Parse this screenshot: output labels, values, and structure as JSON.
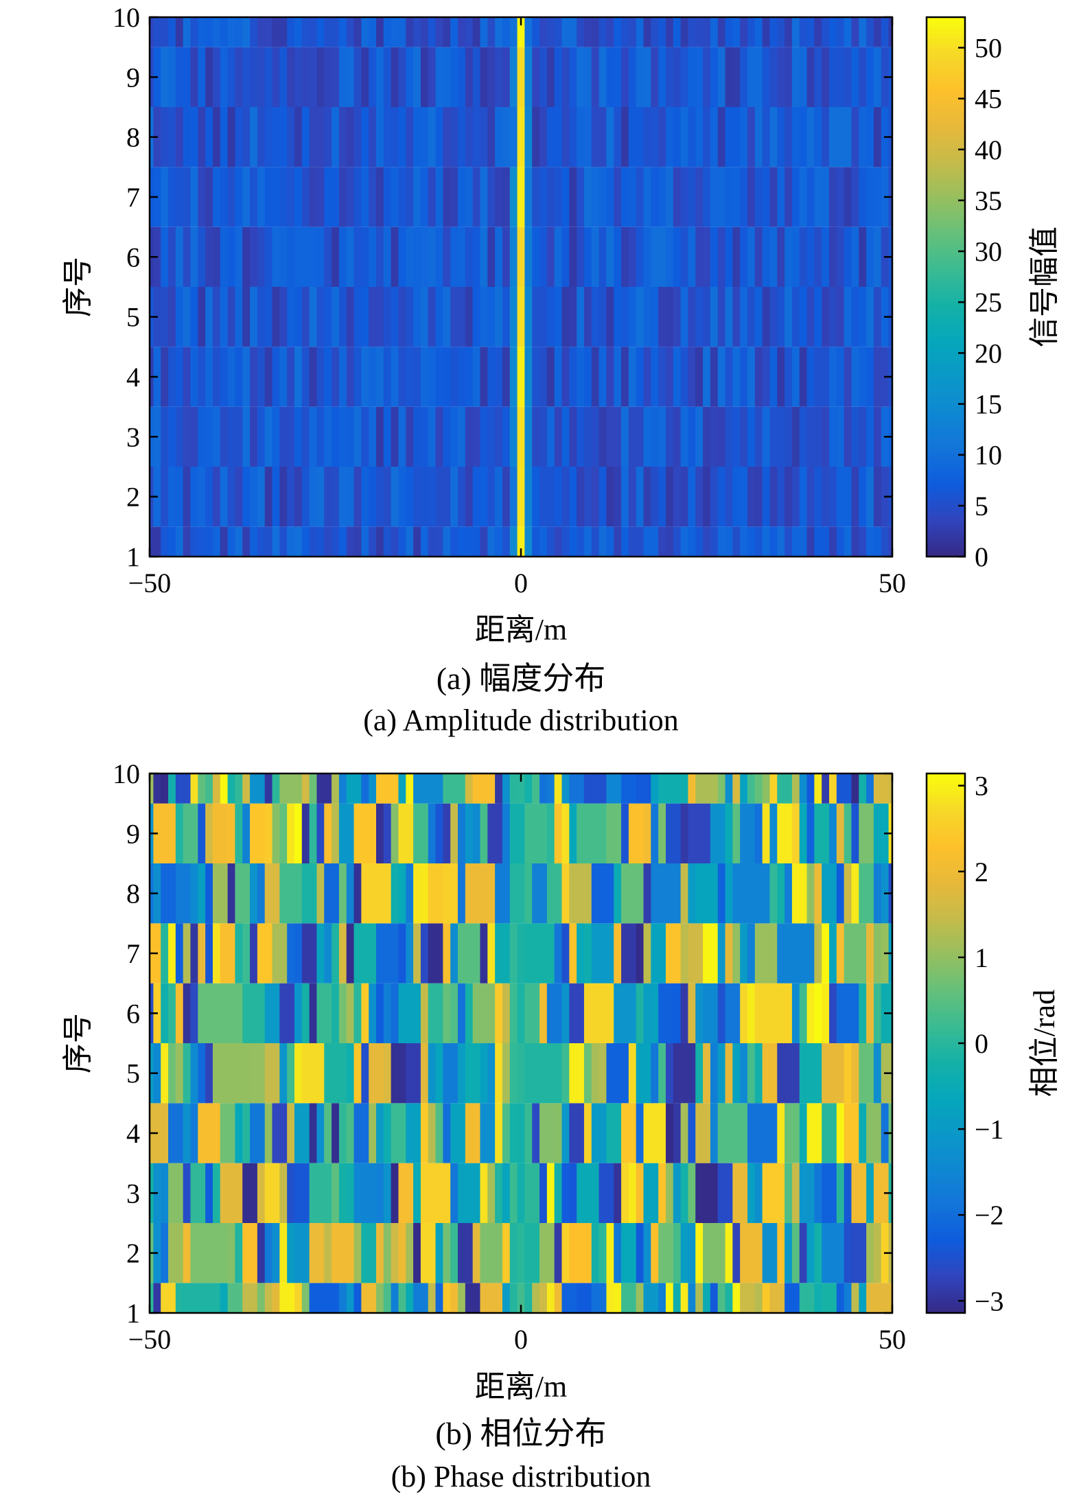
{
  "chart_data": [
    {
      "id": "amplitude",
      "type": "heatmap",
      "title": "",
      "caption_cn": "(a) 幅度分布",
      "caption_en": "(a) Amplitude distribution",
      "xlabel": "距离/m",
      "ylabel": "序号",
      "colorbar_label": "信号幅值",
      "xlim": [
        -50,
        50
      ],
      "ylim": [
        1,
        10
      ],
      "clim": [
        0,
        53
      ],
      "x_ticks": [
        -50,
        0,
        50
      ],
      "x_tick_labels": [
        "−50",
        "0",
        "50"
      ],
      "y_ticks": [
        1,
        2,
        3,
        4,
        5,
        6,
        7,
        8,
        9,
        10
      ],
      "y_tick_labels": [
        "1",
        "2",
        "3",
        "4",
        "5",
        "6",
        "7",
        "8",
        "9",
        "10"
      ],
      "colorbar_ticks": [
        0,
        5,
        10,
        15,
        20,
        25,
        30,
        35,
        40,
        45,
        50
      ],
      "colorbar_tick_labels": [
        "0",
        "5",
        "10",
        "15",
        "20",
        "25",
        "30",
        "35",
        "40",
        "45",
        "50"
      ],
      "rows": 10,
      "x_range_bins": 101,
      "description_of_values": {
        "peak_at_x": 0,
        "peak_value": 53,
        "background_level": [
          2,
          10
        ]
      },
      "colormap": "parula",
      "grid": false
    },
    {
      "id": "phase",
      "type": "heatmap",
      "title": "",
      "caption_cn": "(b) 相位分布",
      "caption_en": "(b) Phase distribution",
      "xlabel": "距离/m",
      "ylabel": "序号",
      "colorbar_label": "相位/rad",
      "xlim": [
        -50,
        50
      ],
      "ylim": [
        1,
        10
      ],
      "clim": [
        -3.1416,
        3.1416
      ],
      "x_ticks": [
        -50,
        0,
        50
      ],
      "x_tick_labels": [
        "−50",
        "0",
        "50"
      ],
      "y_ticks": [
        1,
        2,
        3,
        4,
        5,
        6,
        7,
        8,
        9,
        10
      ],
      "y_tick_labels": [
        "1",
        "2",
        "3",
        "4",
        "5",
        "6",
        "7",
        "8",
        "9",
        "10"
      ],
      "colorbar_ticks": [
        -3,
        -2,
        -1,
        0,
        1,
        2,
        3
      ],
      "colorbar_tick_labels": [
        "−3",
        "−2",
        "−1",
        "0",
        "1",
        "2",
        "3"
      ],
      "rows": 10,
      "x_range_bins": 101,
      "description_of_values": {
        "center_phase_at_x0": 0,
        "elsewhere": "random in [-π, π]"
      },
      "colormap": "parula",
      "grid": false
    }
  ]
}
